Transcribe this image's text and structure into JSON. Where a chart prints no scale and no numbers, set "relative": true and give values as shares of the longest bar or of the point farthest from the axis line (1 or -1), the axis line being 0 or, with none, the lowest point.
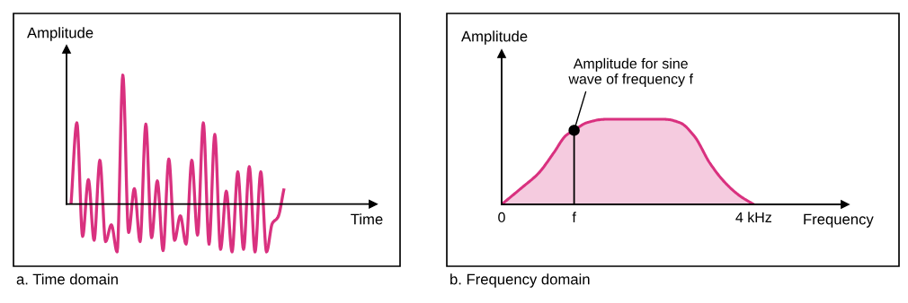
{
  "chart_data": [
    {
      "type": "line",
      "relative": true,
      "xlabel": "Time",
      "ylabel": "Amplitude",
      "color": "#d9317f",
      "categories": [
        null,
        null,
        null,
        null,
        null,
        null,
        null,
        null,
        null,
        null,
        null,
        null,
        null,
        null,
        null,
        null,
        null,
        null,
        null,
        null,
        null,
        null,
        null,
        null,
        null,
        null,
        null,
        null,
        null,
        null,
        null,
        null,
        null,
        null,
        null,
        null,
        null,
        null
      ],
      "values": [
        0.01,
        0.63,
        -0.25,
        0.19,
        -0.28,
        0.34,
        -0.29,
        -0.16,
        -0.37,
        1.0,
        -0.22,
        0.12,
        -0.29,
        0.62,
        -0.26,
        0.18,
        -0.36,
        0.35,
        -0.28,
        -0.09,
        -0.31,
        0.34,
        -0.24,
        0.63,
        -0.31,
        0.54,
        -0.35,
        0.1,
        -0.37,
        0.25,
        -0.35,
        0.29,
        -0.37,
        0.25,
        -0.37,
        -0.15,
        -0.1,
        0.11
      ],
      "annotations": [
        "a. Time domain"
      ]
    },
    {
      "type": "area",
      "relative": true,
      "xlabel": "Frequency",
      "ylabel": "Amplitude",
      "color": "#d9317f",
      "x": [
        0,
        0.31,
        0.59,
        0.83,
        1.02,
        1.15,
        1.35,
        1.64,
        2.59,
        2.83,
        3.06,
        3.3,
        3.54,
        3.78,
        4
      ],
      "values": [
        0,
        0.19,
        0.37,
        0.61,
        0.81,
        0.87,
        0.96,
        1.0,
        1.0,
        0.96,
        0.8,
        0.49,
        0.26,
        0.1,
        0
      ],
      "xlim": [
        0,
        5.45
      ],
      "xticks": [
        0,
        {
          "value": 1.15,
          "label": "f"
        },
        {
          "value": 4,
          "label": "4 kHz"
        }
      ],
      "annotations": [
        {
          "text": "Amplitude for sine\nwave of frequency f",
          "x": 1.15,
          "y": 0.87
        },
        "b. Frequency domain"
      ]
    }
  ]
}
